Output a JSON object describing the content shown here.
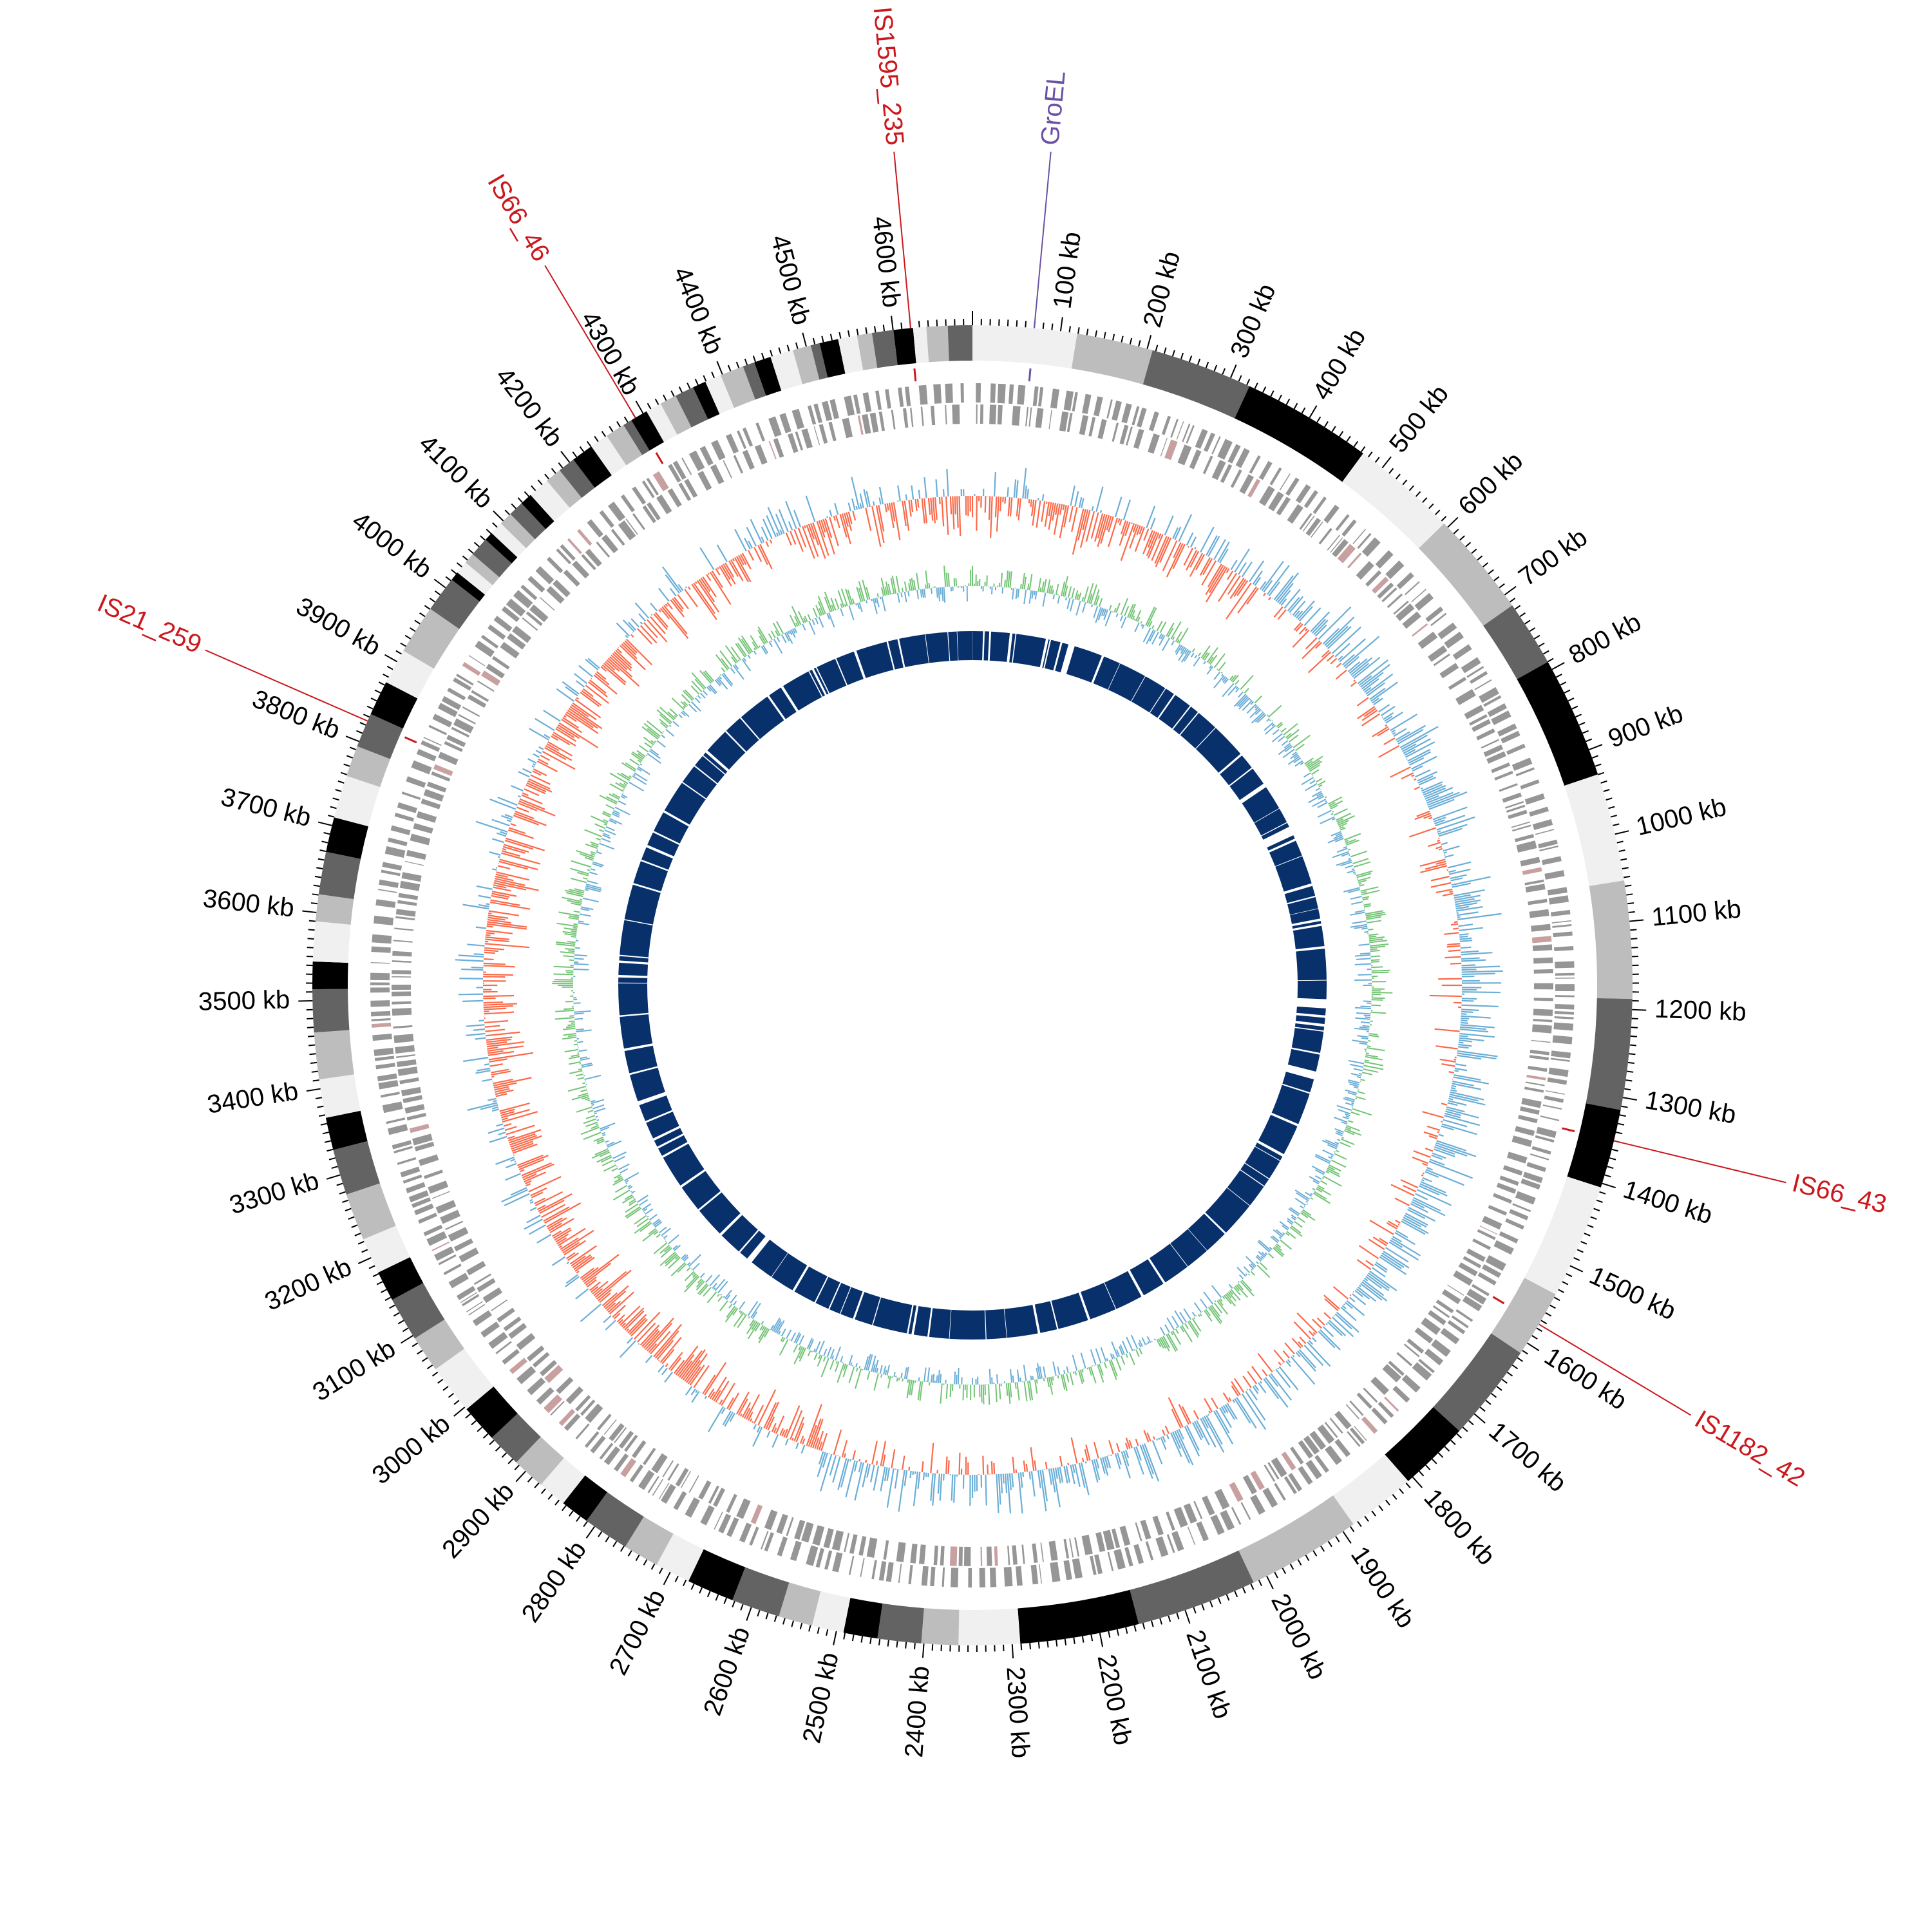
{
  "genome": {
    "tick_labels": [
      "100 kb",
      "200 kb",
      "300 kb",
      "400 kb",
      "500 kb",
      "600 kb",
      "700 kb",
      "800 kb",
      "900 kb",
      "1000 kb",
      "1100 kb",
      "1200 kb",
      "1300 kb",
      "1400 kb",
      "1500 kb",
      "1600 kb",
      "1700 kb",
      "1800 kb",
      "1900 kb",
      "2000 kb",
      "2100 kb",
      "2200 kb",
      "2300 kb",
      "2400 kb",
      "2500 kb",
      "2600 kb",
      "2700 kb",
      "2800 kb",
      "2900 kb",
      "3000 kb",
      "3100 kb",
      "3200 kb",
      "3300 kb",
      "3400 kb",
      "3500 kb",
      "3600 kb",
      "3700 kb",
      "3800 kb",
      "3900 kb",
      "4000 kb",
      "4100 kb",
      "4200 kb",
      "4300 kb",
      "4400 kb",
      "4500 kb",
      "4600 kb"
    ],
    "tick_values_kb": [
      100,
      200,
      300,
      400,
      500,
      600,
      700,
      800,
      900,
      1000,
      1100,
      1200,
      1300,
      1400,
      1500,
      1600,
      1700,
      1800,
      1900,
      2000,
      2100,
      2200,
      2300,
      2400,
      2500,
      2600,
      2700,
      2800,
      2900,
      3000,
      3100,
      3200,
      3300,
      3400,
      3500,
      3600,
      3700,
      3800,
      3900,
      4000,
      4100,
      4200,
      4300,
      4400,
      4500,
      4600
    ],
    "total_kb": 4690
  },
  "annotations": [
    {
      "label": "GroEL",
      "position_kb": 70,
      "color": "#6a51a3"
    },
    {
      "label": "IS1595_235",
      "position_kb": 4620,
      "color": "#cb181d"
    },
    {
      "label": "IS66_46",
      "position_kb": 4290,
      "color": "#cb181d"
    },
    {
      "label": "IS21_259",
      "position_kb": 3825,
      "color": "#cb181d"
    },
    {
      "label": "IS66_43",
      "position_kb": 1350,
      "color": "#cb181d"
    },
    {
      "label": "IS1182_42",
      "position_kb": 1575,
      "color": "#cb181d"
    }
  ],
  "colors": {
    "band_palette": [
      "#f0f0f0",
      "#bdbdbd",
      "#636363",
      "#000000"
    ],
    "gene_track": "#969696",
    "gc_skew_positive": "#6baed6",
    "gc_skew_negative": "#fb6a4a",
    "gc_content": "#74c476",
    "inner_ring": "#08306b",
    "inner_ring_alt": "#08519c"
  }
}
